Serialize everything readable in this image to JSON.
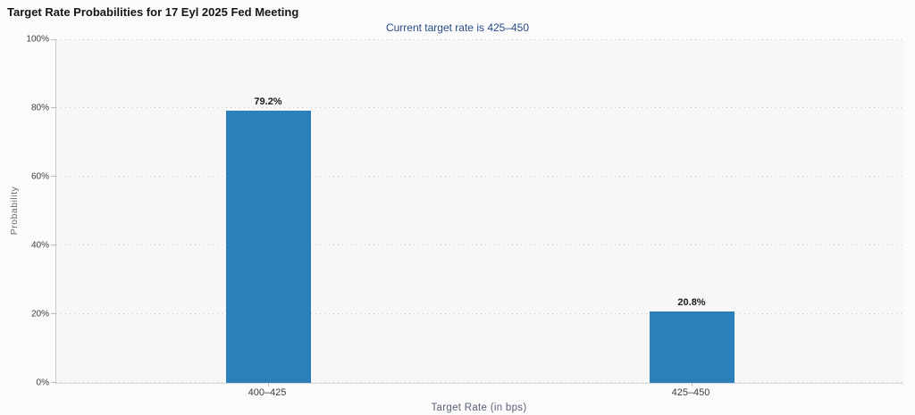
{
  "page": {
    "title": "Target Rate Probabilities for 17 Eyl 2025 Fed Meeting",
    "subtitle": "Current target rate is 425–450"
  },
  "chart_data": {
    "type": "bar",
    "title": "Target Rate Probabilities for 17 Eyl 2025 Fed Meeting",
    "subtitle": "Current target rate is 425–450",
    "categories": [
      "400–425",
      "425–450"
    ],
    "values": [
      79.2,
      20.8
    ],
    "value_labels": [
      "79.2%",
      "20.8%"
    ],
    "xlabel": "Target Rate (in bps)",
    "ylabel": "Probability",
    "ylim": [
      0,
      100
    ],
    "yticks": [
      0,
      20,
      40,
      60,
      80,
      100
    ],
    "ytick_labels": [
      "0%",
      "20%",
      "40%",
      "60%",
      "80%",
      "100%"
    ],
    "grid": "horizontal-dotted",
    "legend": "none",
    "bar_color": "#2b80b9"
  },
  "colors": {
    "bar": "#2b80b9",
    "subtitle_text": "#274b87",
    "axis_title_text": "#5a6276",
    "plot_background": "#f7f7f7",
    "page_background": "#fbfbfb"
  }
}
